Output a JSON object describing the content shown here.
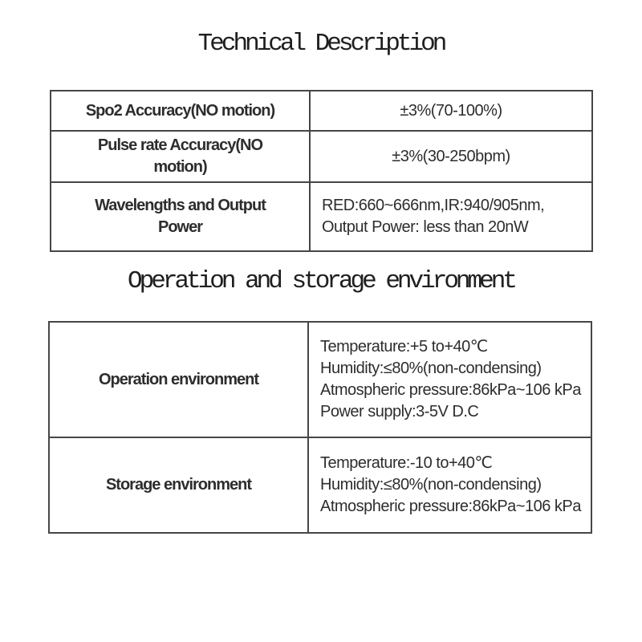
{
  "page": {
    "background": "#ffffff",
    "text_color": "#2d2d2d",
    "heading_color": "#1f1f1f",
    "border_color": "#464646"
  },
  "sections": [
    {
      "heading": "Technical Description",
      "rows": [
        {
          "label": "Spo2 Accuracy(NO motion)",
          "value": "±3%(70-100%)"
        },
        {
          "label": "Pulse rate Accuracy(NO\nmotion)",
          "value": "±3%(30-250bpm)"
        },
        {
          "label": "Wavelengths and Output\nPower",
          "value": "RED:660~666nm,IR:940/905nm,\nOutput Power: less than 20nW"
        }
      ]
    },
    {
      "heading": "Operation and storage environment",
      "rows": [
        {
          "label": "Operation environment",
          "value": "Temperature:+5 to+40℃\nHumidity:≤80%(non-condensing)\nAtmospheric pressure:86kPa~106 kPa\nPower supply:3-5V D.C"
        },
        {
          "label": "Storage environment",
          "value": "Temperature:-10 to+40℃\nHumidity:≤80%(non-condensing)\nAtmospheric pressure:86kPa~106 kPa"
        }
      ]
    }
  ]
}
